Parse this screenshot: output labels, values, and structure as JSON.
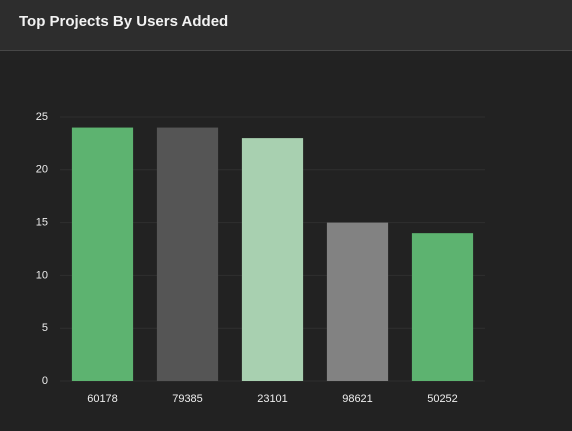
{
  "header": {
    "title": "Top Projects By Users Added"
  },
  "chart_data": {
    "type": "bar",
    "categories": [
      "60178",
      "79385",
      "23101",
      "98621",
      "50252"
    ],
    "values": [
      24,
      24,
      23,
      15,
      14
    ],
    "colors": [
      "#5db370",
      "#555555",
      "#a8d0b0",
      "#828282",
      "#5db370"
    ],
    "ylim": [
      0,
      25
    ],
    "yticks": [
      0,
      5,
      10,
      15,
      20,
      25
    ],
    "grid": true
  }
}
